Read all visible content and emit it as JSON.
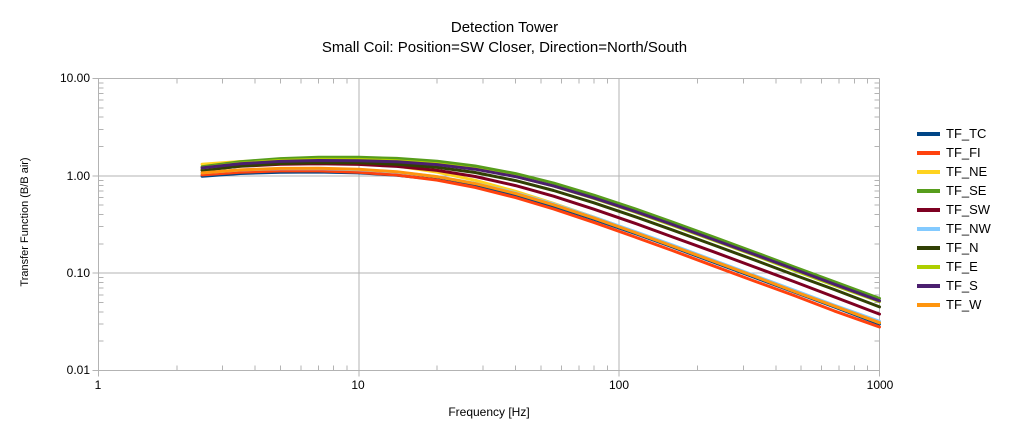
{
  "title": {
    "line1": "Detection Tower",
    "line2": "Small Coil: Position=SW Closer, Direction=North/South"
  },
  "colors": {
    "background": "#ffffff",
    "grid": "#b3b3b3",
    "text": "#000000"
  },
  "chart_data": {
    "type": "line",
    "title": "Detection Tower",
    "subtitle": "Small Coil: Position=SW Closer, Direction=North/South",
    "xlabel": "Frequency [Hz]",
    "ylabel": "Transfer Function (B/B air)",
    "x_scale": "log",
    "y_scale": "log",
    "xlim": [
      1,
      1000
    ],
    "ylim": [
      0.01,
      10
    ],
    "x_tick_labels": [
      "1",
      "10",
      "100",
      "1000"
    ],
    "y_tick_labels": [
      "10.00",
      "1.00",
      "0.10",
      "0.01"
    ],
    "grid": true,
    "legend_position": "right",
    "x": [
      2.5,
      3.5,
      5,
      7,
      10,
      14,
      20,
      28,
      40,
      56,
      80,
      115,
      160,
      230,
      330,
      470,
      670,
      1000
    ],
    "series": [
      {
        "name": "TF_TC",
        "color": "#004586",
        "values": [
          0.99,
          1.056,
          1.091,
          1.095,
          1.071,
          1.016,
          0.917,
          0.788,
          0.632,
          0.488,
          0.358,
          0.256,
          0.186,
          0.13,
          0.091,
          0.064,
          0.045,
          0.03
        ]
      },
      {
        "name": "TF_FI",
        "color": "#FF420E",
        "values": [
          1.022,
          1.09,
          1.123,
          1.123,
          1.088,
          1.019,
          0.903,
          0.76,
          0.598,
          0.456,
          0.332,
          0.235,
          0.171,
          0.119,
          0.083,
          0.059,
          0.041,
          0.028
        ]
      },
      {
        "name": "TF_NE",
        "color": "#FFD320",
        "values": [
          1.318,
          1.403,
          1.441,
          1.431,
          1.371,
          1.263,
          1.093,
          0.9,
          0.693,
          0.521,
          0.376,
          0.266,
          0.192,
          0.134,
          0.094,
          0.066,
          0.046,
          0.031
        ]
      },
      {
        "name": "TF_SE",
        "color": "#579D1C",
        "values": [
          1.241,
          1.398,
          1.502,
          1.549,
          1.552,
          1.51,
          1.411,
          1.262,
          1.055,
          0.843,
          0.633,
          0.458,
          0.335,
          0.236,
          0.165,
          0.116,
          0.082,
          0.055
        ]
      },
      {
        "name": "TF_SW",
        "color": "#7E0021",
        "values": [
          1.148,
          1.252,
          1.314,
          1.332,
          1.31,
          1.251,
          1.136,
          0.984,
          0.794,
          0.617,
          0.454,
          0.325,
          0.236,
          0.166,
          0.116,
          0.082,
          0.057,
          0.038
        ]
      },
      {
        "name": "TF_NW",
        "color": "#83CAFF",
        "values": [
          1.074,
          1.147,
          1.184,
          1.187,
          1.157,
          1.093,
          0.981,
          0.839,
          0.668,
          0.514,
          0.376,
          0.268,
          0.195,
          0.136,
          0.095,
          0.067,
          0.047,
          0.032
        ]
      },
      {
        "name": "TF_N",
        "color": "#314004",
        "values": [
          1.137,
          1.259,
          1.338,
          1.369,
          1.363,
          1.317,
          1.221,
          1.081,
          0.893,
          0.707,
          0.528,
          0.38,
          0.278,
          0.195,
          0.137,
          0.096,
          0.068,
          0.045
        ]
      },
      {
        "name": "TF_E",
        "color": "#AECF00",
        "values": [
          1.207,
          1.346,
          1.439,
          1.478,
          1.476,
          1.432,
          1.333,
          1.185,
          0.986,
          0.784,
          0.587,
          0.424,
          0.31,
          0.218,
          0.153,
          0.107,
          0.075,
          0.051
        ]
      },
      {
        "name": "TF_S",
        "color": "#4B1F6F",
        "values": [
          1.207,
          1.329,
          1.406,
          1.437,
          1.432,
          1.393,
          1.304,
          1.171,
          0.983,
          0.789,
          0.594,
          0.431,
          0.316,
          0.222,
          0.156,
          0.11,
          0.077,
          0.052
        ]
      },
      {
        "name": "TF_W",
        "color": "#FF950E",
        "values": [
          1.072,
          1.151,
          1.193,
          1.198,
          1.166,
          1.099,
          0.98,
          0.833,
          0.659,
          0.504,
          0.368,
          0.262,
          0.19,
          0.133,
          0.093,
          0.065,
          0.046,
          0.031
        ]
      }
    ]
  }
}
